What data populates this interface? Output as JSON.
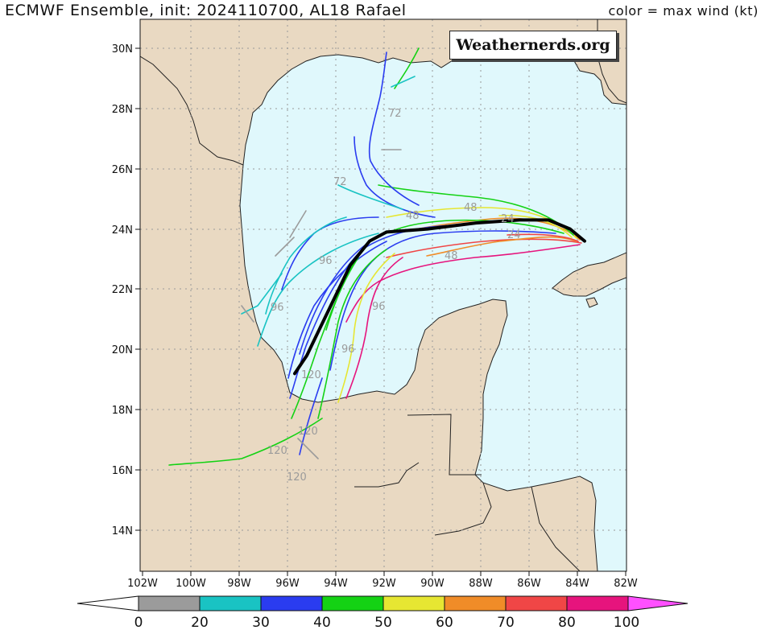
{
  "header": {
    "title": "ECMWF Ensemble, init: 2024110700, AL18 Rafael",
    "legend_note": "color = max wind (kt)"
  },
  "watermark": "Weathernerds.org",
  "axes": {
    "lat_labels": [
      "30N",
      "28N",
      "26N",
      "24N",
      "22N",
      "20N",
      "18N",
      "16N",
      "14N"
    ],
    "lon_labels": [
      "102W",
      "100W",
      "98W",
      "96W",
      "94W",
      "92W",
      "90W",
      "88W",
      "86W",
      "84W",
      "82W"
    ]
  },
  "colorbar": {
    "labels": [
      "0",
      "20",
      "30",
      "40",
      "50",
      "60",
      "70",
      "80",
      "100"
    ],
    "colors": [
      "#9b9b9b",
      "#19c3c3",
      "#2a3cf0",
      "#14d214",
      "#e6e632",
      "#f08c28",
      "#f04646",
      "#e6147d",
      "#ff50ff"
    ]
  },
  "map": {
    "water": "#e0f8fc",
    "land": "#e9d9c2",
    "domain": {
      "lon_range": [
        -102,
        -82
      ],
      "lat_range": [
        12.7,
        30.9
      ]
    },
    "mean_track": [
      [
        -83.7,
        23.6
      ],
      [
        -84.3,
        24.0
      ],
      [
        -85.2,
        24.3
      ],
      [
        -86.4,
        24.3
      ],
      [
        -88.2,
        24.2
      ],
      [
        -90.2,
        24.0
      ],
      [
        -91.9,
        23.9
      ],
      [
        -92.6,
        23.6
      ],
      [
        -93.4,
        22.8
      ],
      [
        -94.0,
        21.8
      ],
      [
        -94.6,
        20.8
      ],
      [
        -95.2,
        19.8
      ],
      [
        -95.7,
        19.2
      ]
    ],
    "time_labels": [
      "72",
      "72",
      "48",
      "96",
      "96",
      "96",
      "96",
      "120",
      "120",
      "120",
      "120",
      "48",
      "24",
      "24",
      "48"
    ]
  }
}
